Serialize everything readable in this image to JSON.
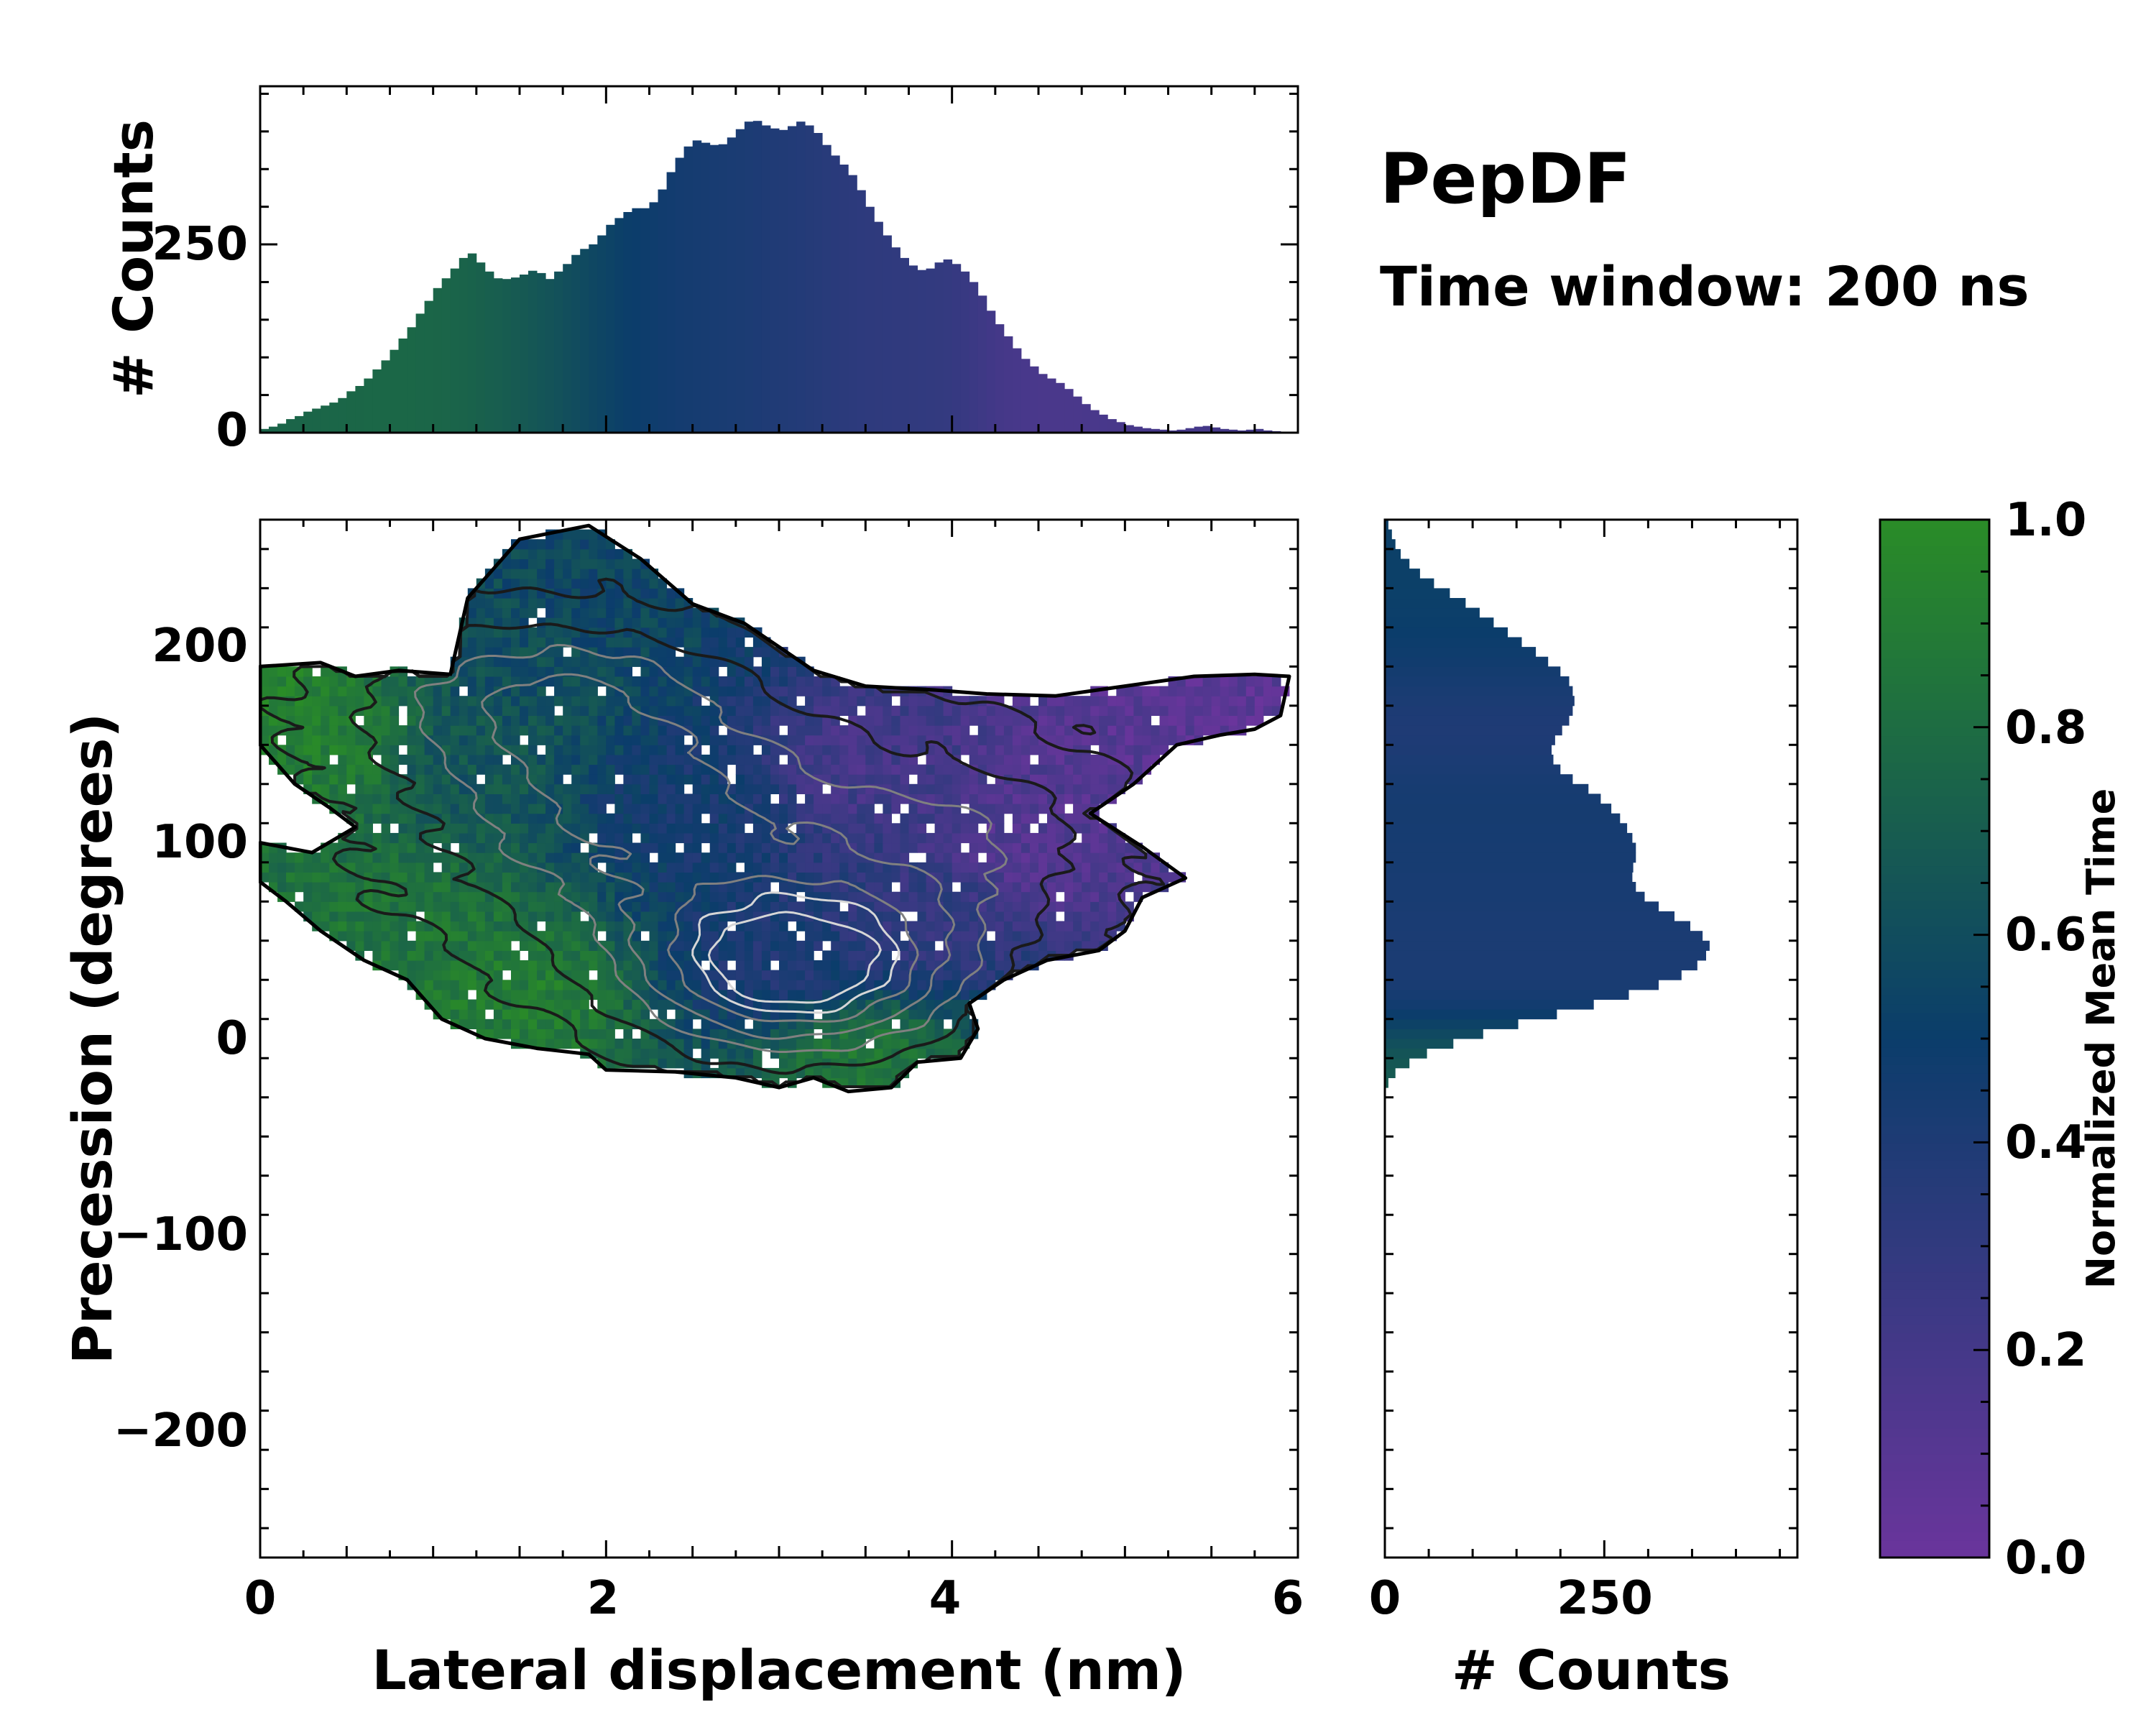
{
  "annotations": {
    "title": "PepDF",
    "subtitle": "Time window: 200 ns"
  },
  "colors": {
    "cmap_low": "#6a359c",
    "cmap_mid": "#0b3d6b",
    "cmap_high": "#2a8c27",
    "contour_dark": "#1a1a1a",
    "contour_gray": "#808080",
    "contour_light": "#d6d6d6",
    "frame": "#000000"
  },
  "chart_data": [
    {
      "id": "main",
      "type": "heatmap",
      "xlabel": "Lateral displacement (nm)",
      "ylabel": "Precession (degrees)",
      "xlim": [
        0,
        6
      ],
      "ylim": [
        -265,
        265
      ],
      "xticks": [
        "0",
        "2",
        "4",
        "6"
      ],
      "xtick_values": [
        0,
        2,
        4,
        6
      ],
      "yticks": [
        "200",
        "100",
        "0",
        "−100",
        "−200"
      ],
      "ytick_values": [
        200,
        100,
        0,
        -100,
        -200
      ],
      "color_meaning": "Normalized Mean Time",
      "color_anchors": [
        {
          "x": 0.0,
          "y": 180,
          "t": 0.95
        },
        {
          "x": 0.4,
          "y": 150,
          "t": 0.9
        },
        {
          "x": 0.8,
          "y": 60,
          "t": 0.85
        },
        {
          "x": 1.5,
          "y": 20,
          "t": 0.9
        },
        {
          "x": 3.5,
          "y": -10,
          "t": 0.85
        },
        {
          "x": 1.2,
          "y": 140,
          "t": 0.65
        },
        {
          "x": 2.0,
          "y": 220,
          "t": 0.55
        },
        {
          "x": 1.5,
          "y": 190,
          "t": 0.6
        },
        {
          "x": 2.5,
          "y": 120,
          "t": 0.45
        },
        {
          "x": 3.0,
          "y": 40,
          "t": 0.4
        },
        {
          "x": 3.8,
          "y": 60,
          "t": 0.3
        },
        {
          "x": 3.5,
          "y": 140,
          "t": 0.2
        },
        {
          "x": 4.5,
          "y": 100,
          "t": 0.12
        },
        {
          "x": 5.5,
          "y": 170,
          "t": 0.08
        },
        {
          "x": 5.0,
          "y": 150,
          "t": 0.1
        }
      ],
      "density_peaks": [
        {
          "x": 3.1,
          "y": 35,
          "sx": 0.65,
          "sy": 30,
          "w": 1.0
        },
        {
          "x": 2.2,
          "y": 110,
          "sx": 0.9,
          "sy": 45,
          "w": 0.55
        },
        {
          "x": 1.6,
          "y": 175,
          "sx": 0.8,
          "sy": 30,
          "w": 0.45
        },
        {
          "x": 4.0,
          "y": 100,
          "sx": 0.7,
          "sy": 40,
          "w": 0.35
        }
      ],
      "contour_levels": [
        0.1,
        0.25,
        0.4,
        0.55,
        0.7,
        0.82,
        0.92
      ],
      "region_outline": [
        [
          0.0,
          190
        ],
        [
          0.35,
          192
        ],
        [
          0.55,
          185
        ],
        [
          0.8,
          188
        ],
        [
          1.1,
          186
        ],
        [
          1.2,
          225
        ],
        [
          1.35,
          240
        ],
        [
          1.5,
          255
        ],
        [
          1.9,
          262
        ],
        [
          2.2,
          245
        ],
        [
          2.5,
          222
        ],
        [
          2.8,
          212
        ],
        [
          3.0,
          200
        ],
        [
          3.2,
          188
        ],
        [
          3.5,
          180
        ],
        [
          3.9,
          178
        ],
        [
          4.2,
          176
        ],
        [
          4.6,
          175
        ],
        [
          5.0,
          180
        ],
        [
          5.4,
          185
        ],
        [
          5.75,
          186
        ],
        [
          5.95,
          185
        ],
        [
          5.9,
          165
        ],
        [
          5.75,
          158
        ],
        [
          5.55,
          155
        ],
        [
          5.3,
          150
        ],
        [
          5.05,
          130
        ],
        [
          4.8,
          115
        ],
        [
          5.1,
          98
        ],
        [
          5.35,
          82
        ],
        [
          5.1,
          72
        ],
        [
          5.0,
          55
        ],
        [
          4.85,
          45
        ],
        [
          4.55,
          40
        ],
        [
          4.3,
          30
        ],
        [
          4.1,
          18
        ],
        [
          4.15,
          5
        ],
        [
          4.05,
          -10
        ],
        [
          3.8,
          -12
        ],
        [
          3.65,
          -25
        ],
        [
          3.4,
          -27
        ],
        [
          3.2,
          -20
        ],
        [
          3.0,
          -25
        ],
        [
          2.75,
          -20
        ],
        [
          2.4,
          -17
        ],
        [
          2.0,
          -16
        ],
        [
          1.9,
          -8
        ],
        [
          1.6,
          -5
        ],
        [
          1.3,
          0
        ],
        [
          1.05,
          10
        ],
        [
          0.85,
          30
        ],
        [
          0.6,
          40
        ],
        [
          0.35,
          55
        ],
        [
          0.15,
          70
        ],
        [
          0.0,
          80
        ],
        [
          0.0,
          100
        ],
        [
          0.3,
          95
        ],
        [
          0.55,
          108
        ],
        [
          0.4,
          118
        ],
        [
          0.2,
          130
        ],
        [
          0.05,
          145
        ],
        [
          0.0,
          150
        ]
      ]
    },
    {
      "id": "top",
      "type": "bar",
      "orientation": "vertical",
      "ylabel": "# Counts",
      "xlim": [
        0,
        6
      ],
      "ylim": [
        0,
        460
      ],
      "yticks": [
        "0",
        "250"
      ],
      "ytick_values": [
        0,
        250
      ],
      "bin_start": 0,
      "bin_width": 0.05,
      "values": [
        5,
        8,
        12,
        18,
        22,
        28,
        32,
        36,
        40,
        46,
        55,
        62,
        72,
        84,
        96,
        110,
        125,
        140,
        158,
        175,
        192,
        205,
        218,
        232,
        238,
        226,
        214,
        205,
        204,
        206,
        210,
        215,
        212,
        204,
        214,
        224,
        236,
        244,
        250,
        262,
        276,
        285,
        293,
        298,
        298,
        306,
        323,
        346,
        365,
        380,
        388,
        385,
        382,
        383,
        392,
        403,
        413,
        414,
        408,
        404,
        402,
        407,
        413,
        408,
        398,
        382,
        368,
        356,
        342,
        322,
        300,
        280,
        262,
        246,
        232,
        222,
        216,
        218,
        226,
        230,
        224,
        214,
        200,
        182,
        162,
        144,
        128,
        112,
        98,
        88,
        78,
        72,
        66,
        58,
        48,
        38,
        30,
        24,
        18,
        14,
        10,
        8,
        6,
        5,
        4,
        3,
        4,
        6,
        8,
        9,
        7,
        5,
        4,
        3,
        4,
        5,
        3,
        2,
        1,
        1
      ]
    },
    {
      "id": "right",
      "type": "bar",
      "orientation": "horizontal",
      "xlabel": "# Counts",
      "xlim": [
        0,
        470
      ],
      "ylim": [
        -265,
        265
      ],
      "xticks": [
        "0",
        "250"
      ],
      "xtick_values": [
        0,
        250
      ],
      "bin_start": -25,
      "bin_width": 5,
      "values": [
        4,
        12,
        28,
        48,
        78,
        112,
        152,
        196,
        238,
        278,
        312,
        338,
        356,
        366,
        370,
        362,
        348,
        330,
        312,
        296,
        286,
        282,
        283,
        286,
        286,
        282,
        276,
        268,
        258,
        246,
        232,
        214,
        200,
        192,
        190,
        194,
        202,
        210,
        214,
        216,
        214,
        210,
        200,
        186,
        172,
        156,
        140,
        124,
        108,
        92,
        74,
        56,
        40,
        28,
        18,
        12,
        8,
        4
      ]
    },
    {
      "id": "colorbar",
      "type": "heatmap",
      "label": "Normalized Mean Time",
      "range": [
        0,
        1
      ],
      "ticks": [
        "0.0",
        "0.2",
        "0.4",
        "0.6",
        "0.8",
        "1.0"
      ],
      "tick_values": [
        0,
        0.2,
        0.4,
        0.6,
        0.8,
        1.0
      ]
    }
  ]
}
